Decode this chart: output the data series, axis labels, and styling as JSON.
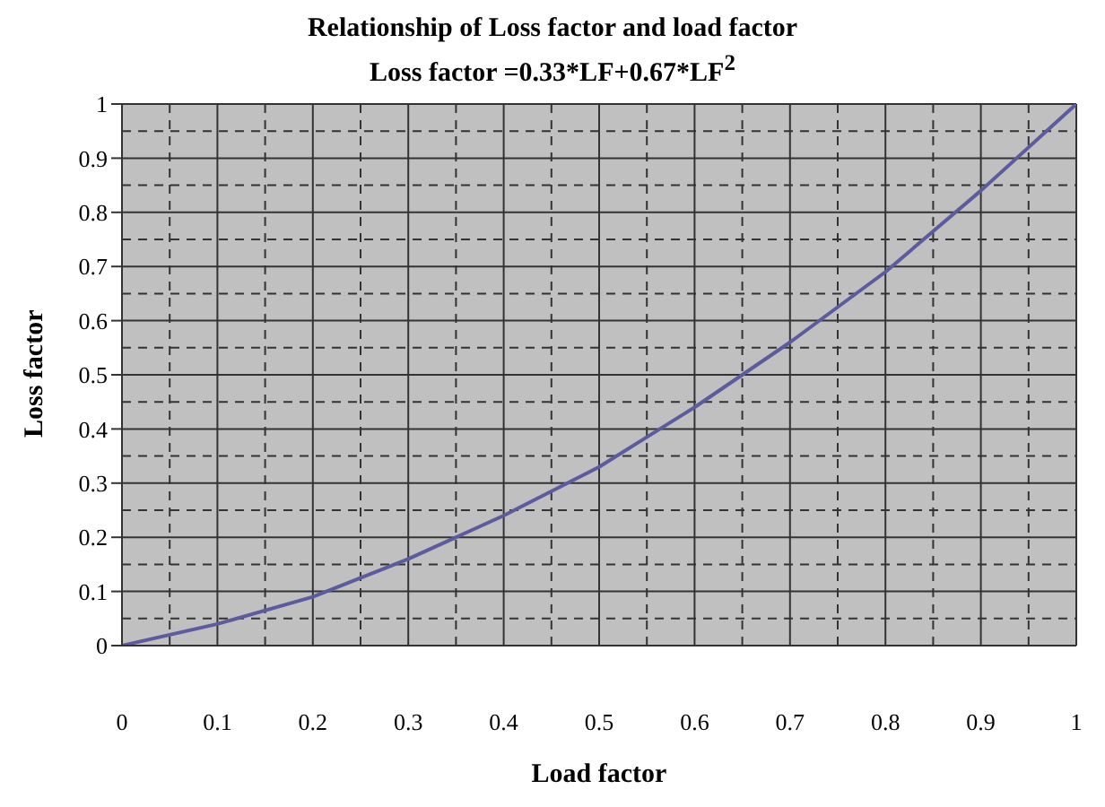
{
  "chart_data": {
    "type": "line",
    "title": "Relationship of Loss factor and load factor",
    "subtitle": "Loss factor =0.33*LF+0.67*LF$^{2}$",
    "xlabel": "Load factor",
    "ylabel": "Loss factor",
    "x": [
      0,
      0.1,
      0.2,
      0.3,
      0.4,
      0.5,
      0.6,
      0.7,
      0.8,
      0.9,
      1
    ],
    "series": [
      {
        "color": "#5b5b9e",
        "values": [
          0,
          0.04,
          0.09,
          0.16,
          0.24,
          0.33,
          0.44,
          0.56,
          0.69,
          0.84,
          1
        ]
      }
    ],
    "xlim": [
      0,
      1
    ],
    "ylim": [
      0,
      1
    ],
    "xticks": [
      0,
      {
        "value": 0.05,
        "label": null
      },
      0.1,
      {
        "value": 0.15,
        "label": null
      },
      0.2,
      {
        "value": 0.25,
        "label": null
      },
      0.3,
      {
        "value": 0.35,
        "label": null
      },
      0.4,
      {
        "value": 0.45,
        "label": null
      },
      0.5,
      {
        "value": 0.55,
        "label": null
      },
      0.6,
      {
        "value": 0.65,
        "label": null
      },
      0.7,
      {
        "value": 0.75,
        "label": null
      },
      0.8,
      {
        "value": 0.85,
        "label": null
      },
      0.9,
      {
        "value": 0.95,
        "label": null
      },
      1
    ],
    "yticks": [
      0,
      {
        "value": 0.05,
        "label": null
      },
      0.1,
      {
        "value": 0.15,
        "label": null
      },
      0.2,
      {
        "value": 0.25,
        "label": null
      },
      0.3,
      {
        "value": 0.35,
        "label": null
      },
      0.4,
      {
        "value": 0.45,
        "label": null
      },
      0.5,
      {
        "value": 0.55,
        "label": null
      },
      0.6,
      {
        "value": 0.65,
        "label": null
      },
      0.7,
      {
        "value": 0.75,
        "label": null
      },
      0.8,
      {
        "value": 0.85,
        "label": null
      },
      0.9,
      {
        "value": 0.95,
        "label": null
      },
      1
    ],
    "grid": true,
    "legend": false,
    "marker": "none",
    "line_style": "solid"
  }
}
